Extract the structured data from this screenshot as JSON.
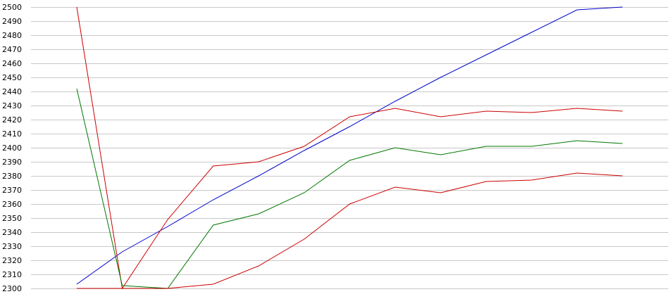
{
  "chart_data": {
    "type": "line",
    "title": "",
    "xlabel": "",
    "ylabel": "",
    "x": [
      1,
      2,
      3,
      4,
      5,
      6,
      7,
      8,
      9,
      10,
      11,
      12,
      13
    ],
    "ylim": [
      2300,
      2500
    ],
    "yticks": [
      2300,
      2310,
      2320,
      2330,
      2340,
      2350,
      2360,
      2370,
      2380,
      2390,
      2400,
      2410,
      2420,
      2430,
      2440,
      2450,
      2460,
      2470,
      2480,
      2490,
      2500
    ],
    "grid": true,
    "legend": "none",
    "series": [
      {
        "color": "#0000cc",
        "values": [
          2303,
          2326,
          2344,
          2363,
          2380,
          2398,
          2415,
          2433,
          2450,
          2466,
          2482,
          2498,
          2500
        ]
      },
      {
        "color": "#cc0000",
        "values": [
          2500,
          2300,
          2349,
          2387,
          2390,
          2401,
          2422,
          2428,
          2422,
          2426,
          2425,
          2428,
          2426
        ]
      },
      {
        "color": "#007700",
        "values": [
          2442,
          2302,
          2300,
          2345,
          2353,
          2368,
          2391,
          2400,
          2395,
          2401,
          2401,
          2405,
          2403
        ]
      },
      {
        "color": "#cc0000",
        "values": [
          2300,
          2300,
          2300,
          2303,
          2316,
          2335,
          2360,
          2372,
          2368,
          2376,
          2377,
          2382,
          2380
        ]
      }
    ]
  }
}
